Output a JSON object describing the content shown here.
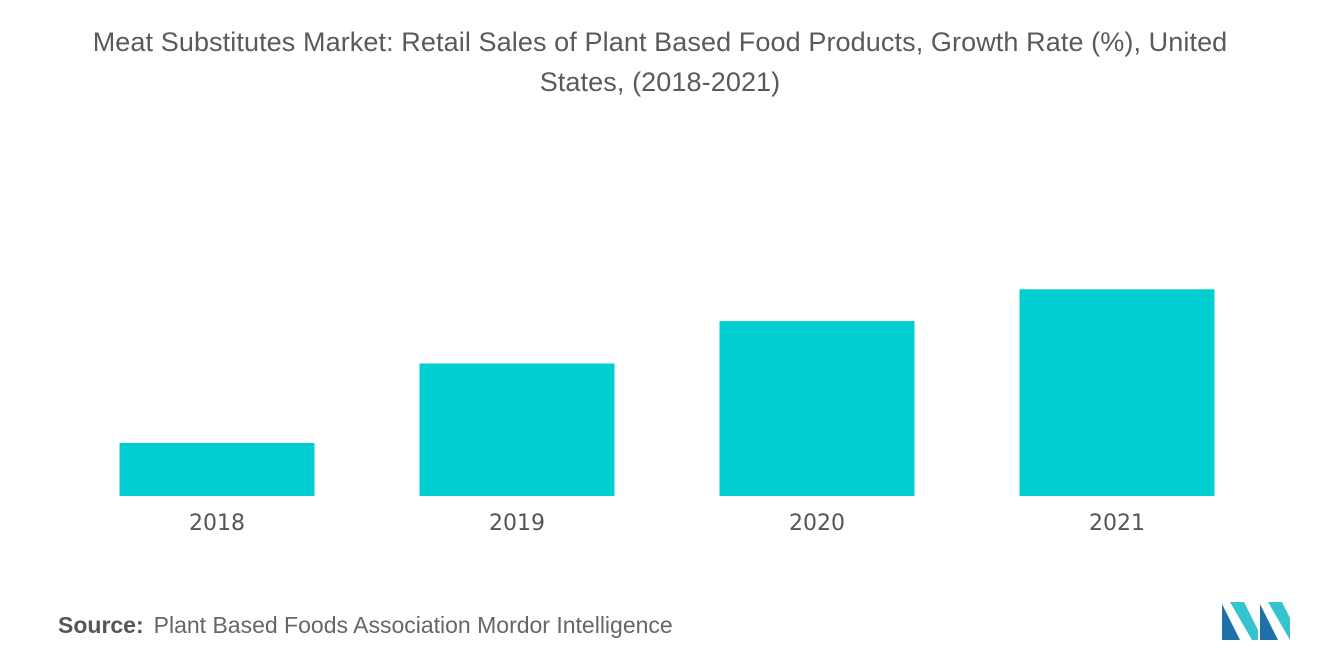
{
  "chart_data": {
    "type": "bar",
    "title_line1": "Meat Substitutes Market: Retail Sales of Plant Based Food Products, Growth Rate (%), United",
    "title_line2": "States, (2018-2021)",
    "categories": [
      "2018",
      "2019",
      "2020",
      "2021"
    ],
    "values": [
      5,
      12.5,
      16.5,
      19.5
    ],
    "xlabel": "",
    "ylabel": "",
    "grid": false,
    "legend": "none",
    "bar_color": "#00ced1"
  },
  "footer": {
    "source_label": "Source:",
    "source_text": "Plant Based Foods Association Mordor Intelligence"
  },
  "logo": {
    "icon": "mordor-intelligence-logo-icon",
    "color_dark": "#1f6fa8",
    "color_light": "#35c3cf"
  }
}
